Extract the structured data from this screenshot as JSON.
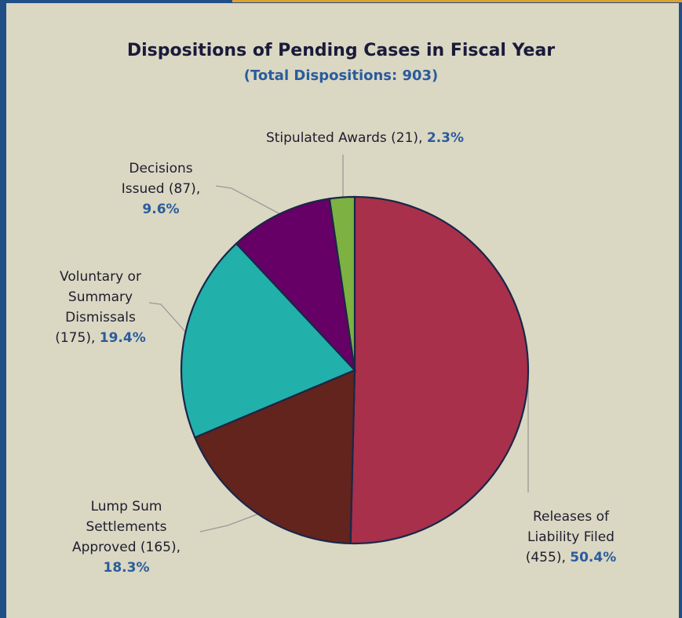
{
  "chart_data": {
    "type": "pie",
    "title": "Dispositions of Pending Cases in Fiscal Year",
    "subtitle": "(Total Dispositions: 903)",
    "categories": [
      "Releases of Liability Filed",
      "Lump Sum Settlements Approved",
      "Voluntary or Summary Dismissals",
      "Decisions Issued",
      "Stipulated Awards"
    ],
    "values": [
      455,
      165,
      175,
      87,
      21
    ],
    "value_labels": [
      "(455),",
      "(165),",
      "(175),",
      "(87),",
      "(21),"
    ],
    "percents": [
      50.4,
      18.3,
      19.4,
      9.6,
      2.3
    ],
    "percent_labels": [
      "50.4%",
      "18.3%",
      "19.4%",
      "9.6%",
      "2.3%"
    ],
    "colors": [
      "#a8304a",
      "#62241c",
      "#22b0aa",
      "#660066",
      "#7db142"
    ]
  }
}
